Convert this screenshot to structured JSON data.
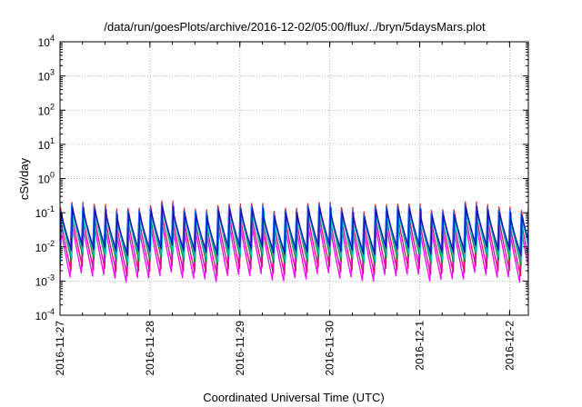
{
  "chart_data": {
    "type": "line",
    "title": "/data/run/goesPlots/archive/2016-12-02/05:00/flux/../bryn/5daysMars.plot",
    "xlabel": "Coordinated Universal Time (UTC)",
    "ylabel": "cSv/day",
    "xscale": "date",
    "yscale": "log",
    "xlim": [
      "2016-11-27T00:00",
      "2016-12-02T05:00"
    ],
    "ylim": [
      0.0001,
      10000
    ],
    "grid": true,
    "x_ticks": [
      "2016-11-27",
      "2016-11-28",
      "2016-11-29",
      "2016-11-30",
      "2016-12-1",
      "2016-12-2"
    ],
    "y_ticks": [
      {
        "base": "10",
        "exp": "4"
      },
      {
        "base": "10",
        "exp": "3"
      },
      {
        "base": "10",
        "exp": "2"
      },
      {
        "base": "10",
        "exp": "1"
      },
      {
        "base": "10",
        "exp": "0"
      },
      {
        "base": "10",
        "exp": "-1"
      },
      {
        "base": "10",
        "exp": "-2"
      },
      {
        "base": "10",
        "exp": "-3"
      },
      {
        "base": "10",
        "exp": "-4"
      }
    ],
    "cycle_hours": 3,
    "series": [
      {
        "color": "#ff00ff",
        "peak": 0.05,
        "trough": 0.0013,
        "phase": 0.0
      },
      {
        "color": "#d01080",
        "peak": 0.06,
        "trough": 0.002,
        "phase": 0.08
      },
      {
        "color": "#e02020",
        "peak": 0.14,
        "trough": 0.006,
        "phase": 0.05
      },
      {
        "color": "#208020",
        "peak": 0.09,
        "trough": 0.004,
        "phase": 0.12
      },
      {
        "color": "#00c0c0",
        "peak": 0.07,
        "trough": 0.005,
        "phase": 0.15
      },
      {
        "color": "#2060ff",
        "peak": 0.12,
        "trough": 0.01,
        "phase": 0.02
      },
      {
        "color": "#1010b0",
        "peak": 0.1,
        "trough": 0.008,
        "phase": 0.1
      }
    ]
  }
}
